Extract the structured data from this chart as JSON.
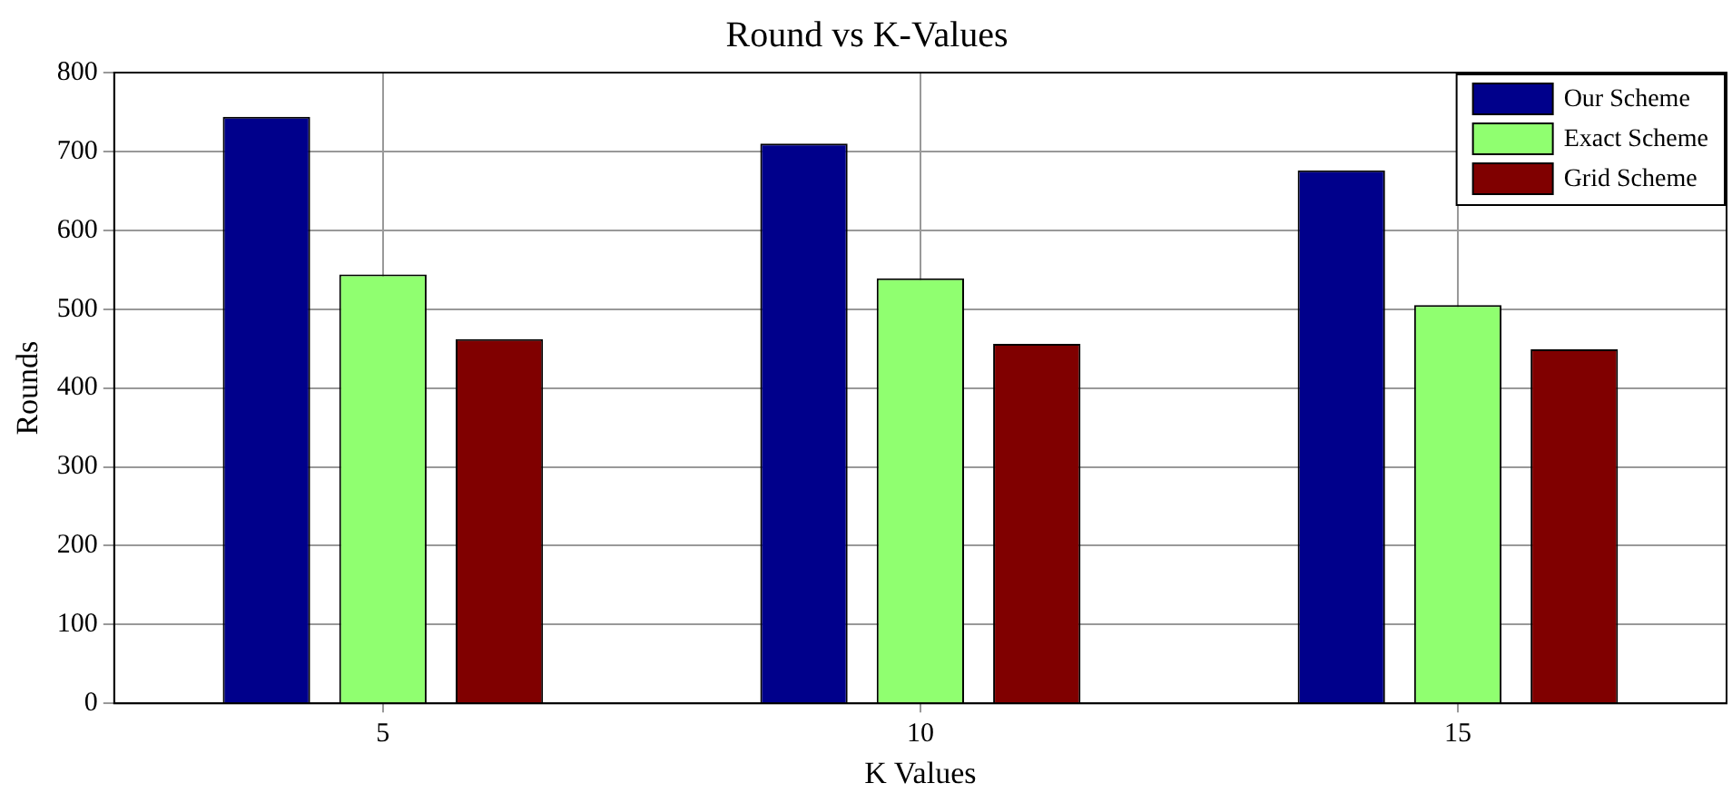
{
  "chart_data": {
    "type": "bar",
    "title": "Round vs K-Values",
    "xlabel": "K Values",
    "ylabel": "Rounds",
    "categories": [
      "5",
      "10",
      "15"
    ],
    "series": [
      {
        "name": "Our Scheme",
        "color": "#00008b",
        "values": [
          744,
          710,
          676
        ]
      },
      {
        "name": "Exact Scheme",
        "color": "#90ff70",
        "values": [
          544,
          539,
          505
        ]
      },
      {
        "name": "Grid Scheme",
        "color": "#800000",
        "values": [
          462,
          456,
          449
        ]
      }
    ],
    "ylim": [
      0,
      800
    ],
    "yticks": [
      0,
      100,
      200,
      300,
      400,
      500,
      600,
      700,
      800
    ],
    "grid": true,
    "legend": "top right"
  }
}
